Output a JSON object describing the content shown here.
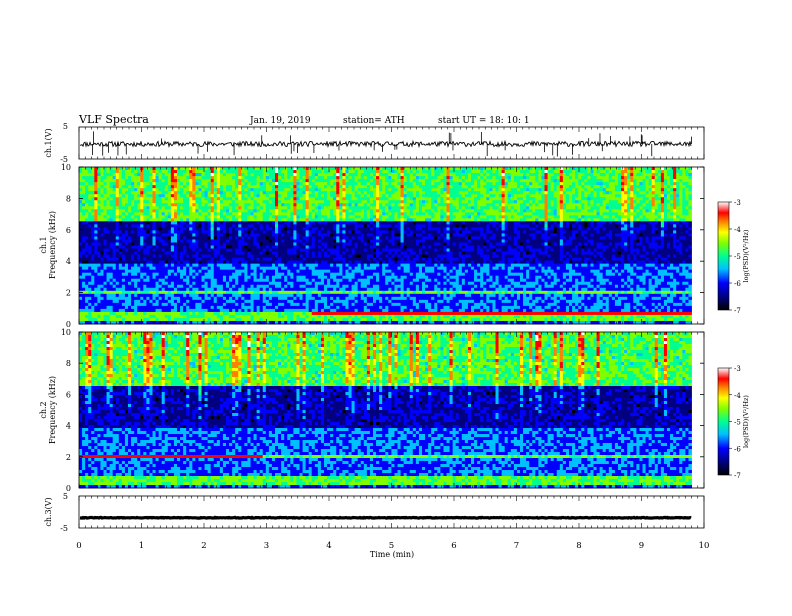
{
  "header": {
    "title": "VLF  Spectra",
    "date": "Jan. 19, 2019",
    "station": "station= ATH",
    "start": "start  UT  =   18: 10: 1"
  },
  "colors": {
    "spectrogram_stops": [
      "#000000",
      "#000080",
      "#0000ff",
      "#00c0ff",
      "#00ff90",
      "#80ff00",
      "#ffff00",
      "#ff8000",
      "#ff0000",
      "#ffffff"
    ],
    "trace": "#000000"
  },
  "chart_data": [
    {
      "type": "line",
      "id": "ch1-waveform",
      "ylabel": "ch.1(V)",
      "ylim": [
        -5,
        5
      ],
      "yticks": [
        "5",
        "-5"
      ],
      "xlim": [
        0,
        10
      ],
      "trace_level_v": -0.3,
      "trace_noise_v": 0.8
    },
    {
      "type": "heatmap",
      "id": "ch1-spectrogram",
      "ylabel_top": "ch.1",
      "ylabel": "Frequency  (kHz)",
      "ylim": [
        0,
        10
      ],
      "yticks": [
        "0",
        "2",
        "4",
        "6",
        "8",
        "10"
      ],
      "xlim": [
        0,
        10
      ],
      "data_end_min": 9.8,
      "colorbar": {
        "label": "log(PSD)(V²/Hz)",
        "min": -7,
        "max": -3,
        "ticks": [
          "-3",
          "-4",
          "-5",
          "-6",
          "-7"
        ]
      }
    },
    {
      "type": "heatmap",
      "id": "ch2-spectrogram",
      "ylabel_top": "ch.2",
      "ylabel": "Frequency  (kHz)",
      "ylim": [
        0,
        10
      ],
      "yticks": [
        "0",
        "2",
        "4",
        "6",
        "8",
        "10"
      ],
      "xlim": [
        0,
        10
      ],
      "data_end_min": 9.8,
      "colorbar": {
        "label": "log(PSD)(V²/Hz)",
        "min": -7,
        "max": -3,
        "ticks": [
          "-3",
          "-4",
          "-5",
          "-6",
          "-7"
        ]
      }
    },
    {
      "type": "line",
      "id": "ch3-waveform",
      "ylabel": "ch.3(V)",
      "ylim": [
        -5,
        5
      ],
      "yticks": [
        "5",
        "-5"
      ],
      "xlim": [
        0,
        10
      ],
      "trace_level_v": -1.8,
      "trace_noise_v": 0.1
    }
  ],
  "xaxis": {
    "label": "Time  (min)",
    "ticks": [
      "0",
      "1",
      "2",
      "3",
      "4",
      "5",
      "6",
      "7",
      "8",
      "9",
      "10"
    ]
  }
}
